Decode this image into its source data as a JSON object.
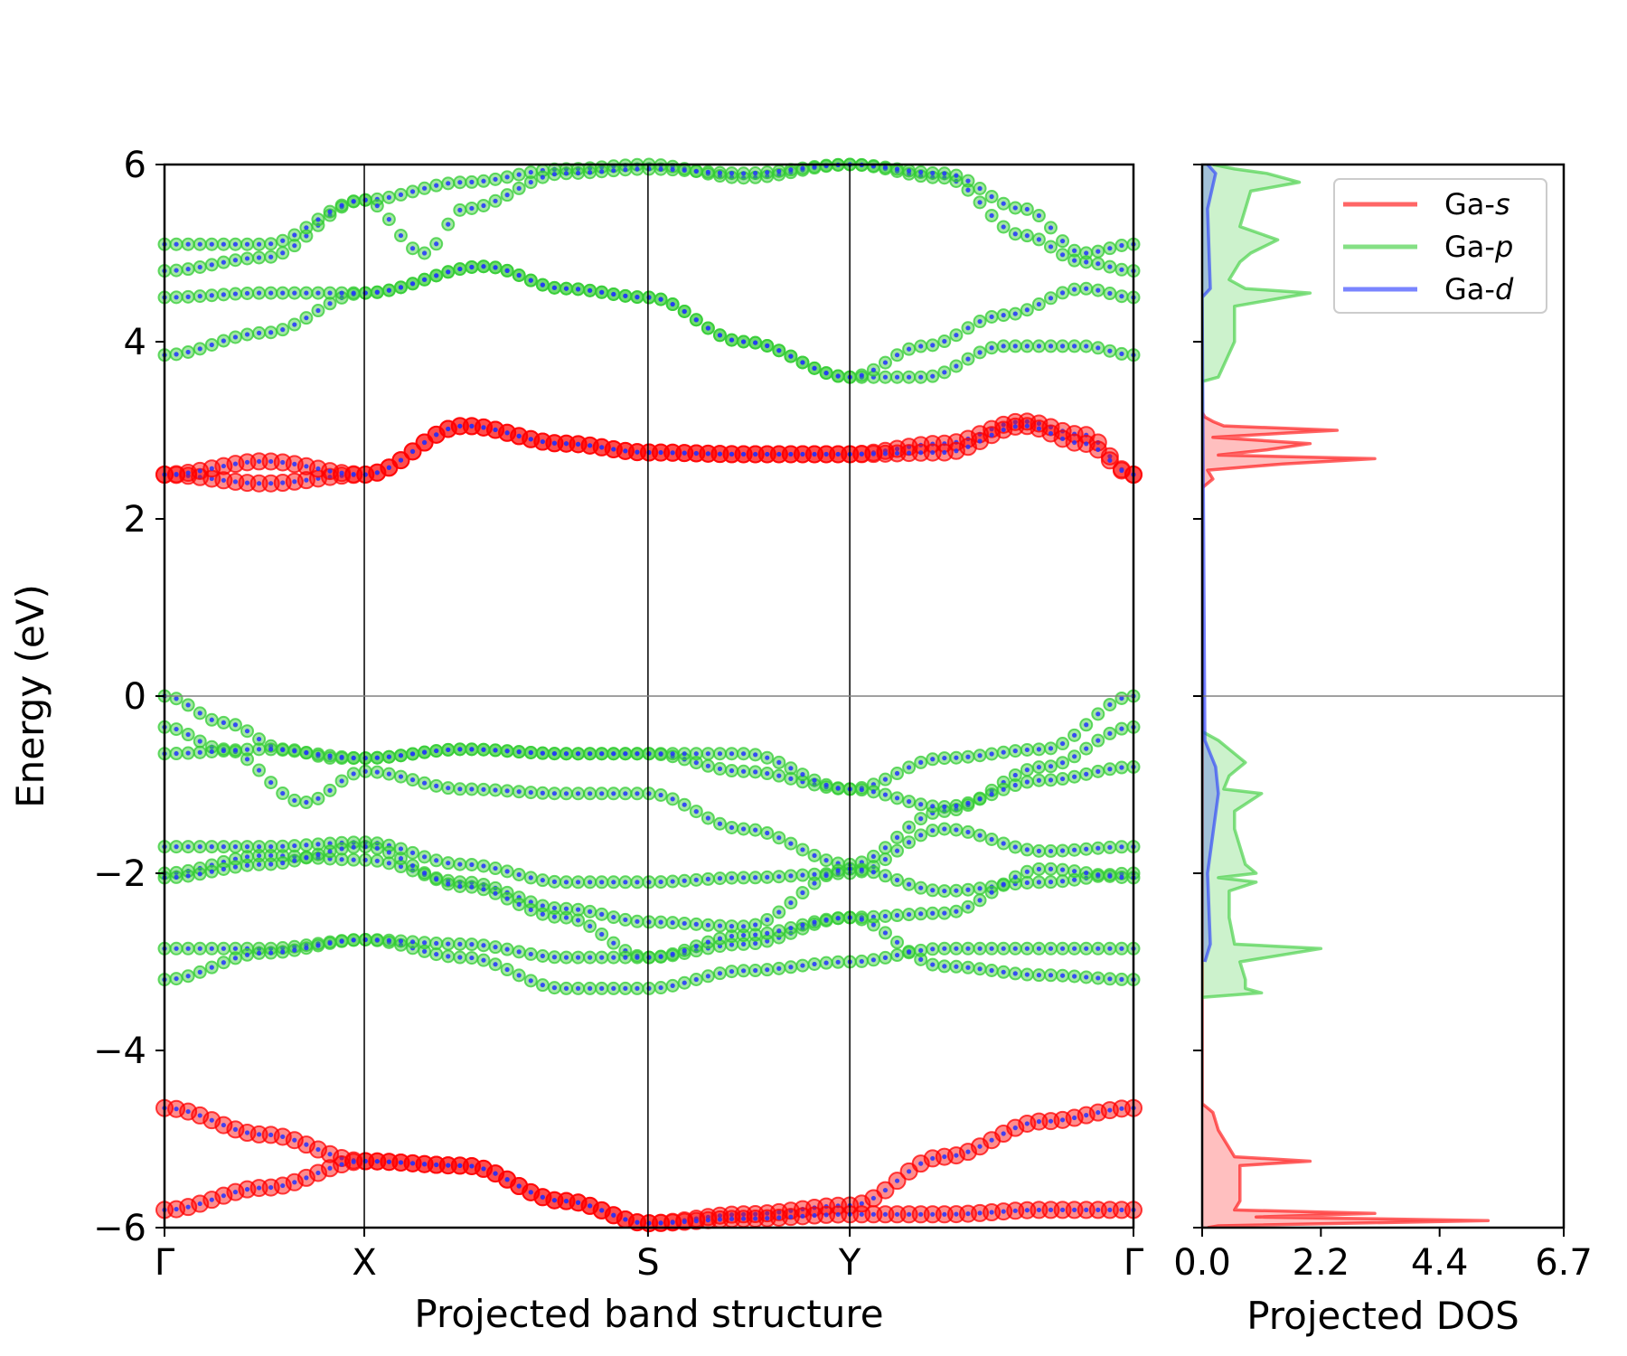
{
  "colors": {
    "s": "#ff0000",
    "p": "#33cc33",
    "d": "#2233ff",
    "zero_line": "#808080",
    "frame": "#000000"
  },
  "chart_data": [
    {
      "type": "scatter",
      "title": "",
      "xlabel": "Projected band structure",
      "ylabel": "Energy (eV)",
      "ylim": [
        -6,
        6
      ],
      "yticks": [
        "−6",
        "−4",
        "−2",
        "0",
        "2",
        "4",
        "6"
      ],
      "ytick_values": [
        -6,
        -4,
        -2,
        0,
        2,
        4,
        6
      ],
      "kpath": [
        "Γ",
        "X",
        "S",
        "Y",
        "Γ"
      ],
      "kpath_positions": [
        0,
        1.0,
        2.42,
        3.43,
        4.85
      ],
      "grid": false,
      "markers_note": "point size proportional to orbital weight",
      "bands": [
        {
          "orbital": "s",
          "x": [
            0,
            0.5,
            1.0,
            1.5,
            2.0,
            2.42,
            2.9,
            3.43,
            3.9,
            4.3,
            4.6,
            4.85
          ],
          "y": [
            2.5,
            2.4,
            2.5,
            3.05,
            2.85,
            2.75,
            2.73,
            2.73,
            2.85,
            3.1,
            2.95,
            2.5
          ]
        },
        {
          "orbital": "s",
          "x": [
            0,
            0.5,
            1.0,
            1.5,
            2.0,
            2.42,
            2.9,
            3.43,
            3.9,
            4.3,
            4.6,
            4.85
          ],
          "y": [
            2.5,
            2.65,
            2.5,
            3.05,
            2.85,
            2.75,
            2.73,
            2.73,
            2.75,
            3.05,
            2.85,
            2.5
          ]
        },
        {
          "orbital": "p",
          "x": [
            0,
            0.5,
            1.0,
            1.6,
            2.0,
            2.42,
            2.9,
            3.43,
            3.8,
            4.2,
            4.6,
            4.85
          ],
          "y": [
            3.85,
            4.1,
            4.55,
            4.85,
            4.6,
            4.5,
            4.0,
            3.6,
            3.6,
            3.95,
            3.95,
            3.85
          ]
        },
        {
          "orbital": "p",
          "x": [
            0,
            0.5,
            1.0,
            1.6,
            2.0,
            2.42,
            2.9,
            3.43,
            3.8,
            4.2,
            4.6,
            4.85
          ],
          "y": [
            4.5,
            4.55,
            4.55,
            4.85,
            4.6,
            4.5,
            4.0,
            3.6,
            3.95,
            4.3,
            4.6,
            4.5
          ]
        },
        {
          "orbital": "p",
          "x": [
            0,
            0.5,
            1.0,
            1.5,
            2.0,
            2.42,
            2.9,
            3.43,
            3.9,
            4.3,
            4.6,
            4.85
          ],
          "y": [
            4.8,
            4.95,
            5.6,
            5.8,
            5.95,
            6.0,
            5.85,
            6.0,
            5.85,
            5.2,
            4.9,
            4.8
          ]
        },
        {
          "orbital": "p",
          "x": [
            0,
            0.5,
            1.0,
            1.3,
            1.5,
            2.0,
            2.42,
            2.9,
            3.43,
            3.9,
            4.3,
            4.6,
            4.85
          ],
          "y": [
            5.1,
            5.1,
            5.6,
            5.0,
            5.5,
            5.9,
            5.95,
            5.9,
            6.0,
            5.9,
            5.5,
            5.0,
            5.1
          ]
        },
        {
          "orbital": "p",
          "x": [
            0,
            0.3,
            0.6,
            0.85,
            1.0,
            1.5,
            2.0,
            2.42,
            2.9,
            3.43,
            3.9,
            4.4,
            4.85
          ],
          "y": [
            0.0,
            -0.3,
            -0.6,
            -0.7,
            -0.7,
            -0.6,
            -0.65,
            -0.65,
            -0.85,
            -1.05,
            -0.7,
            -0.6,
            0.0
          ]
        },
        {
          "orbital": "p",
          "x": [
            0,
            0.3,
            0.7,
            1.0,
            1.5,
            2.0,
            2.42,
            2.9,
            3.43,
            3.9,
            4.4,
            4.85
          ],
          "y": [
            -0.35,
            -0.6,
            -1.2,
            -0.85,
            -1.05,
            -1.1,
            -1.1,
            -1.5,
            -1.9,
            -1.3,
            -0.8,
            -0.35
          ]
        },
        {
          "orbital": "p",
          "x": [
            0,
            0.5,
            1.0,
            1.5,
            2.0,
            2.42,
            2.9,
            3.43,
            3.9,
            4.4,
            4.85
          ],
          "y": [
            -0.65,
            -0.6,
            -0.7,
            -0.6,
            -0.65,
            -0.65,
            -0.65,
            -1.05,
            -1.25,
            -0.95,
            -0.8
          ]
        },
        {
          "orbital": "p",
          "x": [
            0,
            0.5,
            1.0,
            1.5,
            2.0,
            2.42,
            2.9,
            3.43,
            3.9,
            4.4,
            4.85
          ],
          "y": [
            -1.7,
            -1.7,
            -1.65,
            -1.9,
            -2.1,
            -2.1,
            -2.05,
            -2.0,
            -1.5,
            -1.75,
            -1.7
          ]
        },
        {
          "orbital": "p",
          "x": [
            0,
            0.5,
            1.0,
            1.5,
            2.0,
            2.42,
            2.9,
            3.43,
            3.9,
            4.4,
            4.85
          ],
          "y": [
            -2.0,
            -1.8,
            -1.85,
            -2.1,
            -2.4,
            -2.55,
            -2.6,
            -1.95,
            -2.2,
            -2.1,
            -2.0
          ]
        },
        {
          "orbital": "p",
          "x": [
            0,
            0.5,
            1.0,
            1.5,
            2.0,
            2.42,
            2.9,
            3.43,
            3.9,
            4.4,
            4.85
          ],
          "y": [
            -2.05,
            -1.9,
            -1.7,
            -2.15,
            -2.5,
            -2.95,
            -2.8,
            -2.5,
            -2.45,
            -1.95,
            -2.05
          ]
        },
        {
          "orbital": "p",
          "x": [
            0,
            0.5,
            1.0,
            1.5,
            2.0,
            2.42,
            2.9,
            3.43,
            3.9,
            4.4,
            4.85
          ],
          "y": [
            -2.85,
            -2.85,
            -2.75,
            -2.95,
            -3.3,
            -3.3,
            -3.1,
            -3.0,
            -2.85,
            -2.85,
            -2.85
          ]
        },
        {
          "orbital": "p",
          "x": [
            0,
            0.5,
            1.0,
            1.5,
            2.0,
            2.42,
            2.9,
            3.43,
            3.9,
            4.4,
            4.85
          ],
          "y": [
            -3.2,
            -2.9,
            -2.75,
            -2.8,
            -2.95,
            -2.95,
            -2.7,
            -2.5,
            -3.05,
            -3.15,
            -3.2
          ]
        },
        {
          "orbital": "s",
          "x": [
            0,
            0.5,
            1.0,
            1.5,
            2.0,
            2.42,
            2.9,
            3.43,
            3.9,
            4.4,
            4.85
          ],
          "y": [
            -4.65,
            -4.95,
            -5.25,
            -5.3,
            -5.7,
            -5.95,
            -5.85,
            -5.75,
            -5.2,
            -4.8,
            -4.65
          ]
        },
        {
          "orbital": "s",
          "x": [
            0,
            0.5,
            1.0,
            1.5,
            2.0,
            2.42,
            2.9,
            3.43,
            3.9,
            4.4,
            4.85
          ],
          "y": [
            -5.8,
            -5.55,
            -5.25,
            -5.3,
            -5.7,
            -5.95,
            -5.9,
            -5.85,
            -5.85,
            -5.8,
            -5.8
          ]
        }
      ]
    },
    {
      "type": "area",
      "title": "",
      "xlabel": "Projected DOS",
      "ylabel": "",
      "xlim": [
        0,
        6.7
      ],
      "xticks": [
        "0.0",
        "2.2",
        "4.4",
        "6.7"
      ],
      "xtick_values": [
        0,
        2.2,
        4.4,
        6.7
      ],
      "ylim": [
        -6,
        6
      ],
      "legend_position": "upper right",
      "grid": false,
      "series": [
        {
          "name": "Ga-",
          "name_italic": "s",
          "color": "#ff0000",
          "y": [
            -6.0,
            -5.98,
            -5.92,
            -5.88,
            -5.84,
            -5.8,
            -5.7,
            -5.5,
            -5.3,
            -5.25,
            -5.2,
            -5.1,
            -4.9,
            -4.7,
            -4.65,
            -4.6,
            2.35,
            2.45,
            2.55,
            2.62,
            2.68,
            2.72,
            2.78,
            2.85,
            2.92,
            2.97,
            3.0,
            3.05,
            3.1,
            3.15,
            3.2
          ],
          "x": [
            0.1,
            0.3,
            5.3,
            1.0,
            3.2,
            0.6,
            0.7,
            0.7,
            0.7,
            2.0,
            0.6,
            0.5,
            0.3,
            0.2,
            0.1,
            0.0,
            0.0,
            0.2,
            0.1,
            1.5,
            3.2,
            0.3,
            1.2,
            2.0,
            0.2,
            1.6,
            2.5,
            0.4,
            0.2,
            0.05,
            0.0
          ]
        },
        {
          "name": "Ga-",
          "name_italic": "p",
          "color": "#33cc33",
          "y": [
            -3.4,
            -3.35,
            -3.3,
            -3.2,
            -3.0,
            -2.85,
            -2.8,
            -2.5,
            -2.2,
            -2.1,
            -2.05,
            -2.0,
            -1.9,
            -1.7,
            -1.5,
            -1.3,
            -1.1,
            -1.05,
            -0.9,
            -0.75,
            -0.6,
            -0.5,
            -0.4,
            3.55,
            3.6,
            4.0,
            4.4,
            4.55,
            4.6,
            4.7,
            4.9,
            5.0,
            5.15,
            5.3,
            5.5,
            5.7,
            5.8,
            5.9,
            5.95,
            6.0
          ],
          "x": [
            0.0,
            1.1,
            0.8,
            0.8,
            0.7,
            2.2,
            0.6,
            0.5,
            0.5,
            1.0,
            0.3,
            1.0,
            0.8,
            0.7,
            0.6,
            0.6,
            1.1,
            0.4,
            0.5,
            0.8,
            0.5,
            0.3,
            0.0,
            0.0,
            0.3,
            0.6,
            0.6,
            2.0,
            0.8,
            0.5,
            0.7,
            0.9,
            1.4,
            0.7,
            0.8,
            0.9,
            1.8,
            1.2,
            0.6,
            0.2
          ]
        },
        {
          "name": "Ga-",
          "name_italic": "d",
          "color": "#2233ff",
          "y": [
            -3.0,
            -2.8,
            -2.0,
            -1.1,
            -0.8,
            -0.5,
            4.5,
            4.6,
            5.5,
            5.9,
            6.0
          ],
          "x": [
            0.05,
            0.15,
            0.1,
            0.3,
            0.25,
            0.05,
            0.0,
            0.15,
            0.1,
            0.25,
            0.1
          ]
        }
      ]
    }
  ]
}
